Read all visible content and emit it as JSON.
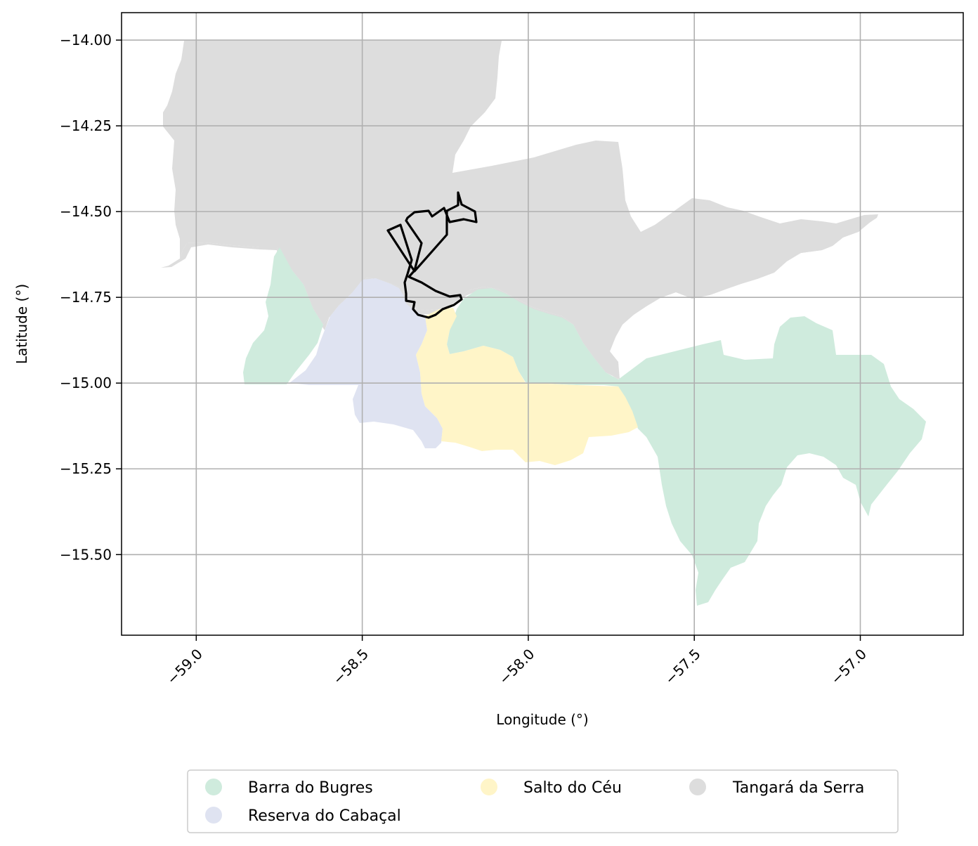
{
  "chart_data": {
    "type": "map",
    "xlabel": "Longitude (°)",
    "ylabel": "Latitude (°)",
    "xlim": [
      -59.225,
      -56.69
    ],
    "ylim": [
      -15.735,
      -13.92
    ],
    "xticks": [
      -59.0,
      -58.5,
      -58.0,
      -57.5,
      -57.0
    ],
    "xtick_labels": [
      "−59.0",
      "−58.5",
      "−58.0",
      "−57.5",
      "−57.0"
    ],
    "yticks": [
      -14.0,
      -14.25,
      -14.5,
      -14.75,
      -15.0,
      -15.25,
      -15.5
    ],
    "ytick_labels": [
      "−14.00",
      "−14.25",
      "−14.50",
      "−14.75",
      "−15.00",
      "−15.25",
      "−15.50"
    ],
    "grid": true,
    "legend_position": "bottom-center",
    "regions": [
      {
        "name": "Barra do Bugres",
        "color": "#cfebdd"
      },
      {
        "name": "Reserva do Cabaçal",
        "color": "#dfe3f1"
      },
      {
        "name": "Salto do Céu",
        "color": "#fff5c8"
      },
      {
        "name": "Tangará da Serra",
        "color": "#dddddd"
      }
    ],
    "route_color": "#000000"
  }
}
